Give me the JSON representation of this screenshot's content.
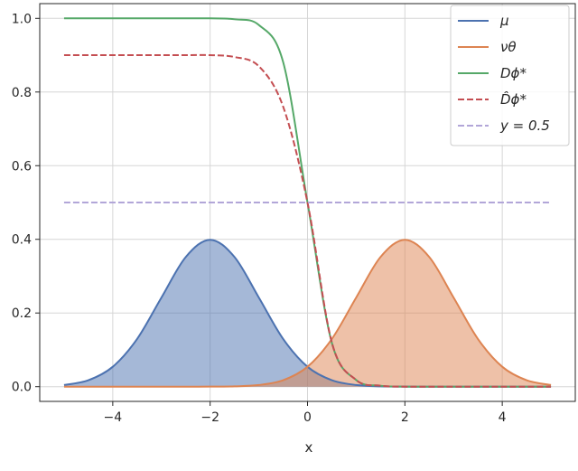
{
  "chart_data": {
    "type": "line",
    "title": "",
    "xlabel": "x",
    "ylabel": "",
    "xlim": [
      -5.5,
      5.5
    ],
    "ylim": [
      -0.04,
      1.04
    ],
    "xticks": [
      -4,
      -2,
      0,
      2,
      4
    ],
    "xtick_labels": [
      "−4",
      "−2",
      "0",
      "2",
      "4"
    ],
    "yticks": [
      0.0,
      0.2,
      0.4,
      0.6,
      0.8,
      1.0
    ],
    "ytick_labels": [
      "0.0",
      "0.2",
      "0.4",
      "0.6",
      "0.8",
      "1.0"
    ],
    "grid": true,
    "legend_position": "top-right",
    "x": [
      -5.0,
      -4.5,
      -4.0,
      -3.5,
      -3.0,
      -2.5,
      -2.0,
      -1.5,
      -1.0,
      -0.5,
      0.0,
      0.5,
      1.0,
      1.5,
      2.0,
      2.5,
      3.0,
      3.5,
      4.0,
      4.5,
      5.0
    ],
    "series": [
      {
        "name": "μ",
        "color": "#4c72b0",
        "style": "solid",
        "fill": true,
        "values": [
          0.0044,
          0.0175,
          0.054,
          0.1295,
          0.242,
          0.3521,
          0.3989,
          0.3521,
          0.242,
          0.1295,
          0.054,
          0.0175,
          0.0044,
          0.0009,
          0.0001,
          0.0,
          0.0,
          0.0,
          0.0,
          0.0,
          0.0
        ]
      },
      {
        "name": "νθ",
        "color": "#dd8452",
        "style": "solid",
        "fill": true,
        "values": [
          0.0,
          0.0,
          0.0,
          0.0,
          0.0,
          0.0,
          0.0001,
          0.0009,
          0.0044,
          0.0175,
          0.054,
          0.1295,
          0.242,
          0.3521,
          0.3989,
          0.3521,
          0.242,
          0.1295,
          0.054,
          0.0175,
          0.0044
        ]
      },
      {
        "name": "Dϕ*",
        "color": "#55a868",
        "style": "solid",
        "fill": false,
        "values": [
          1.0,
          1.0,
          1.0,
          1.0,
          1.0,
          1.0,
          1.0,
          0.9975,
          0.982,
          0.881,
          0.5,
          0.119,
          0.018,
          0.0025,
          0.0,
          0.0,
          0.0,
          0.0,
          0.0,
          0.0,
          0.0
        ]
      },
      {
        "name": "D̂ϕ*",
        "color": "#c44e52",
        "style": "dashed",
        "fill": false,
        "values": [
          0.9,
          0.9,
          0.9,
          0.9,
          0.9,
          0.9,
          0.9,
          0.895,
          0.87,
          0.76,
          0.5,
          0.12,
          0.018,
          0.0025,
          0.0,
          0.0,
          0.0,
          0.0,
          0.0,
          0.0,
          0.0
        ]
      },
      {
        "name": "y = 0.5",
        "color": "#b2a6d8",
        "style": "dashed",
        "fill": false,
        "values": [
          0.5,
          0.5,
          0.5,
          0.5,
          0.5,
          0.5,
          0.5,
          0.5,
          0.5,
          0.5,
          0.5,
          0.5,
          0.5,
          0.5,
          0.5,
          0.5,
          0.5,
          0.5,
          0.5,
          0.5,
          0.5
        ]
      }
    ]
  }
}
